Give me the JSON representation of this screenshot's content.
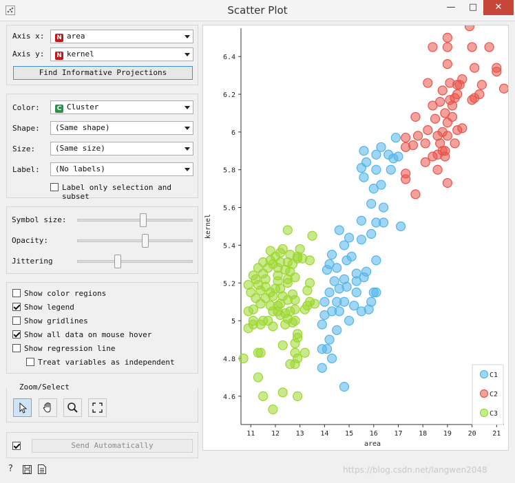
{
  "window": {
    "title": "Scatter Plot",
    "minimize_glyph": "—",
    "maximize_glyph": "□",
    "close_glyph": "✕"
  },
  "axes_panel": {
    "axis_x_label": "Axis x:",
    "axis_x_value": "area",
    "axis_x_type_badge": "N",
    "axis_y_label": "Axis y:",
    "axis_y_value": "kernel",
    "axis_y_type_badge": "N",
    "find_projections_label": "Find Informative Projections"
  },
  "attributes_panel": {
    "color_label": "Color:",
    "color_value": "Cluster",
    "color_type_badge": "C",
    "shape_label": "Shape:",
    "shape_value": "(Same shape)",
    "size_label": "Size:",
    "size_value": "(Same size)",
    "label_label": "Label:",
    "label_value": "(No labels)",
    "label_only_selection": "Label only selection and subset",
    "label_only_selection_checked": false
  },
  "sliders_panel": {
    "symbol_size_label": "Symbol size:",
    "symbol_size_level": 0.57,
    "opacity_label": "Opacity:",
    "opacity_level": 0.59,
    "jittering_label": "Jittering",
    "jittering_level": 0.35
  },
  "options_panel": {
    "items": [
      {
        "label": "Show color regions",
        "checked": false
      },
      {
        "label": "Show legend",
        "checked": true
      },
      {
        "label": "Show gridlines",
        "checked": false
      },
      {
        "label": "Show all data on mouse hover",
        "checked": true
      },
      {
        "label": "Show regression line",
        "checked": false
      },
      {
        "label": "Treat variables as independent",
        "checked": false
      }
    ]
  },
  "zoom_panel": {
    "title": "Zoom/Select",
    "tools": [
      "pointer-icon",
      "hand-icon",
      "magnifier-icon",
      "fit-icon"
    ],
    "active_tool": "pointer-icon"
  },
  "send_panel": {
    "auto_checked": true,
    "send_label": "Send Automatically"
  },
  "bottom_icons": [
    "help-icon",
    "save-icon",
    "report-icon"
  ],
  "watermark": "https://blog.csdn.net/langwen2048",
  "colors": {
    "C1": "#52b5e9",
    "C2": "#e8544a",
    "C3": "#9cd72f"
  },
  "chart_data": {
    "type": "scatter",
    "xlabel": "area",
    "ylabel": "kernel",
    "xlim": [
      10.6,
      21.3
    ],
    "ylim": [
      4.45,
      6.55
    ],
    "xticks": [
      11,
      12,
      13,
      14,
      15,
      16,
      17,
      18,
      19,
      20,
      21
    ],
    "yticks": [
      4.6,
      4.8,
      5,
      5.2,
      5.4,
      5.6,
      5.8,
      6,
      6.2,
      6.4
    ],
    "grid": false,
    "legend": "bottom-right",
    "series": [
      {
        "name": "C1",
        "color": "#52b5e9",
        "points": [
          [
            14.8,
            4.65
          ],
          [
            13.9,
            4.75
          ],
          [
            14.3,
            4.8
          ],
          [
            14.1,
            4.85
          ],
          [
            13.9,
            4.85
          ],
          [
            14.2,
            4.9
          ],
          [
            14.5,
            4.95
          ],
          [
            13.9,
            4.98
          ],
          [
            14.0,
            5.03
          ],
          [
            15.0,
            5.0
          ],
          [
            14.3,
            5.05
          ],
          [
            14.6,
            5.05
          ],
          [
            15.2,
            5.08
          ],
          [
            14.0,
            5.1
          ],
          [
            14.5,
            5.1
          ],
          [
            14.8,
            5.1
          ],
          [
            15.5,
            5.05
          ],
          [
            15.8,
            5.06
          ],
          [
            15.9,
            5.1
          ],
          [
            16.1,
            5.15
          ],
          [
            14.2,
            5.15
          ],
          [
            14.6,
            5.17
          ],
          [
            14.9,
            5.18
          ],
          [
            15.3,
            5.15
          ],
          [
            16.0,
            5.15
          ],
          [
            14.4,
            5.21
          ],
          [
            14.8,
            5.22
          ],
          [
            15.3,
            5.21
          ],
          [
            15.6,
            5.23
          ],
          [
            14.1,
            5.27
          ],
          [
            14.5,
            5.28
          ],
          [
            15.3,
            5.25
          ],
          [
            15.7,
            5.26
          ],
          [
            14.2,
            5.3
          ],
          [
            14.3,
            5.35
          ],
          [
            14.9,
            5.32
          ],
          [
            15.1,
            5.34
          ],
          [
            16.1,
            5.32
          ],
          [
            14.8,
            5.4
          ],
          [
            15.5,
            5.43
          ],
          [
            14.6,
            5.48
          ],
          [
            15.0,
            5.44
          ],
          [
            15.9,
            5.46
          ],
          [
            16.1,
            5.52
          ],
          [
            15.5,
            5.53
          ],
          [
            16.4,
            5.52
          ],
          [
            16.4,
            5.6
          ],
          [
            17.1,
            5.5
          ],
          [
            15.9,
            5.62
          ],
          [
            16.0,
            5.7
          ],
          [
            16.3,
            5.72
          ],
          [
            16.1,
            5.8
          ],
          [
            16.7,
            5.8
          ],
          [
            15.5,
            5.81
          ],
          [
            15.6,
            5.76
          ],
          [
            15.7,
            5.84
          ],
          [
            15.6,
            5.9
          ],
          [
            16.1,
            5.88
          ],
          [
            16.3,
            5.92
          ],
          [
            16.8,
            5.86
          ],
          [
            17.0,
            5.87
          ],
          [
            16.6,
            5.88
          ],
          [
            16.9,
            5.97
          ]
        ]
      },
      {
        "name": "C2",
        "color": "#e8544a",
        "points": [
          [
            17.3,
            5.75
          ],
          [
            17.3,
            5.78
          ],
          [
            17.7,
            5.67
          ],
          [
            18.1,
            5.84
          ],
          [
            18.6,
            5.8
          ],
          [
            19.0,
            5.73
          ],
          [
            18.4,
            5.87
          ],
          [
            18.6,
            5.88
          ],
          [
            18.8,
            5.9
          ],
          [
            18.9,
            5.87
          ],
          [
            17.3,
            5.92
          ],
          [
            17.6,
            5.93
          ],
          [
            18.1,
            5.94
          ],
          [
            17.3,
            5.97
          ],
          [
            17.8,
            5.98
          ],
          [
            18.6,
            5.98
          ],
          [
            18.7,
            5.94
          ],
          [
            18.9,
            5.9
          ],
          [
            19.3,
            5.94
          ],
          [
            19.0,
            5.98
          ],
          [
            18.2,
            6.01
          ],
          [
            18.8,
            6.0
          ],
          [
            19.0,
            6.05
          ],
          [
            19.6,
            6.02
          ],
          [
            19.4,
            6.01
          ],
          [
            17.7,
            6.08
          ],
          [
            18.5,
            6.07
          ],
          [
            18.9,
            6.1
          ],
          [
            19.2,
            6.08
          ],
          [
            18.4,
            6.14
          ],
          [
            18.7,
            6.16
          ],
          [
            19.1,
            6.17
          ],
          [
            19.2,
            6.14
          ],
          [
            19.4,
            6.2
          ],
          [
            19.3,
            6.18
          ],
          [
            20.1,
            6.18
          ],
          [
            20.3,
            6.2
          ],
          [
            20.0,
            6.17
          ],
          [
            20.4,
            6.25
          ],
          [
            18.8,
            6.22
          ],
          [
            19.1,
            6.26
          ],
          [
            19.4,
            6.25
          ],
          [
            19.5,
            6.25
          ],
          [
            19.6,
            6.28
          ],
          [
            18.2,
            6.26
          ],
          [
            20.1,
            6.34
          ],
          [
            21.0,
            6.34
          ],
          [
            21.0,
            6.32
          ],
          [
            21.3,
            6.23
          ],
          [
            19.0,
            6.36
          ],
          [
            18.4,
            6.45
          ],
          [
            19.0,
            6.45
          ],
          [
            19.0,
            6.5
          ],
          [
            20.0,
            6.45
          ],
          [
            20.7,
            6.45
          ],
          [
            19.9,
            6.56
          ]
        ]
      },
      {
        "name": "C3",
        "color": "#9cd72f",
        "points": [
          [
            10.7,
            4.8
          ],
          [
            11.3,
            4.7
          ],
          [
            11.3,
            4.83
          ],
          [
            11.5,
            4.6
          ],
          [
            11.9,
            4.53
          ],
          [
            12.3,
            4.62
          ],
          [
            12.9,
            4.6
          ],
          [
            11.4,
            4.83
          ],
          [
            12.8,
            4.77
          ],
          [
            12.9,
            4.8
          ],
          [
            12.6,
            4.77
          ],
          [
            12.8,
            4.83
          ],
          [
            13.2,
            4.83
          ],
          [
            12.3,
            4.87
          ],
          [
            12.8,
            4.88
          ],
          [
            12.9,
            4.91
          ],
          [
            12.9,
            4.93
          ],
          [
            10.9,
            4.96
          ],
          [
            11.1,
            4.98
          ],
          [
            11.4,
            4.98
          ],
          [
            11.5,
            5.0
          ],
          [
            11.7,
            5.0
          ],
          [
            11.1,
            5.0
          ],
          [
            11.9,
            4.97
          ],
          [
            12.4,
            4.98
          ],
          [
            12.7,
            4.99
          ],
          [
            12.8,
            5.0
          ],
          [
            12.5,
            5.01
          ],
          [
            12.2,
            5.03
          ],
          [
            11.9,
            5.05
          ],
          [
            12.1,
            5.05
          ],
          [
            12.4,
            5.04
          ],
          [
            12.6,
            5.05
          ],
          [
            12.8,
            5.06
          ],
          [
            13.3,
            5.08
          ],
          [
            13.6,
            5.09
          ],
          [
            13.2,
            5.06
          ],
          [
            12.1,
            5.08
          ],
          [
            13.4,
            5.1
          ],
          [
            10.9,
            5.05
          ],
          [
            11.1,
            5.06
          ],
          [
            11.4,
            5.09
          ],
          [
            11.8,
            5.08
          ],
          [
            12.2,
            5.09
          ],
          [
            12.5,
            5.11
          ],
          [
            12.8,
            5.11
          ],
          [
            11.2,
            5.12
          ],
          [
            11.6,
            5.12
          ],
          [
            11.9,
            5.13
          ],
          [
            12.3,
            5.13
          ],
          [
            12.7,
            5.14
          ],
          [
            11.0,
            5.15
          ],
          [
            11.4,
            5.16
          ],
          [
            11.8,
            5.15
          ],
          [
            12.2,
            5.17
          ],
          [
            13.3,
            5.16
          ],
          [
            10.9,
            5.19
          ],
          [
            11.3,
            5.19
          ],
          [
            11.6,
            5.18
          ],
          [
            12.0,
            5.17
          ],
          [
            12.5,
            5.2
          ],
          [
            13.4,
            5.2
          ],
          [
            11.2,
            5.22
          ],
          [
            11.6,
            5.22
          ],
          [
            12.1,
            5.21
          ],
          [
            12.5,
            5.22
          ],
          [
            12.8,
            5.23
          ],
          [
            11.1,
            5.24
          ],
          [
            11.5,
            5.25
          ],
          [
            12.1,
            5.24
          ],
          [
            12.6,
            5.26
          ],
          [
            11.3,
            5.28
          ],
          [
            11.7,
            5.28
          ],
          [
            12.1,
            5.28
          ],
          [
            12.4,
            5.27
          ],
          [
            12.7,
            5.3
          ],
          [
            11.9,
            5.3
          ],
          [
            11.5,
            5.31
          ],
          [
            11.8,
            5.32
          ],
          [
            12.2,
            5.31
          ],
          [
            12.5,
            5.31
          ],
          [
            12.9,
            5.33
          ],
          [
            13.1,
            5.33
          ],
          [
            12.0,
            5.34
          ],
          [
            12.6,
            5.35
          ],
          [
            12.9,
            5.34
          ],
          [
            13.4,
            5.32
          ],
          [
            11.8,
            5.37
          ],
          [
            12.2,
            5.36
          ],
          [
            12.3,
            5.38
          ],
          [
            13.0,
            5.38
          ],
          [
            13.5,
            5.45
          ],
          [
            12.5,
            5.48
          ]
        ]
      }
    ]
  }
}
